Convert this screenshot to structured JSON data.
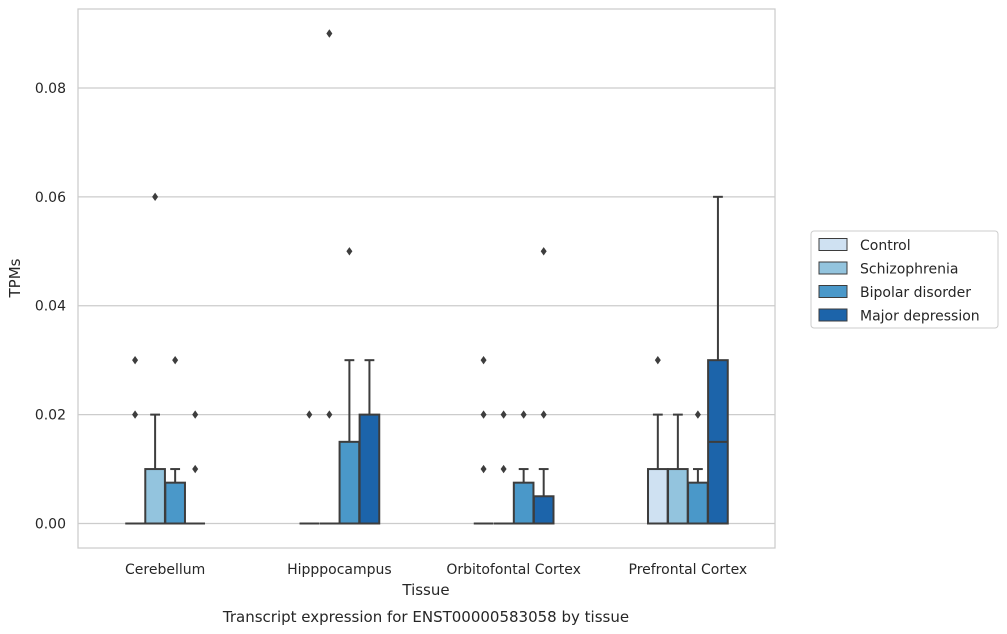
{
  "caption": "Transcript expression for ENST00000583058 by tissue",
  "chart_data": {
    "type": "box",
    "xlabel": "Tissue",
    "ylabel": "TPMs",
    "ylim": [
      -0.0045,
      0.0945
    ],
    "yticks": [
      0.0,
      0.02,
      0.04,
      0.06,
      0.08
    ],
    "ytick_labels": [
      "0.00",
      "0.02",
      "0.04",
      "0.06",
      "0.08"
    ],
    "grid": "horizontal",
    "legend_position": "right",
    "categories": [
      "Cerebellum",
      "Hipppocampus",
      "Orbitofontal Cortex",
      "Prefrontal Cortex"
    ],
    "series": [
      {
        "name": "Control",
        "color": "#cfe1f2",
        "boxes": [
          {
            "q1": 0,
            "median": 0,
            "q3": 0,
            "whislo": 0,
            "whishi": 0,
            "fliers": [
              0.02,
              0.03
            ]
          },
          {
            "q1": 0,
            "median": 0,
            "q3": 0,
            "whislo": 0,
            "whishi": 0,
            "fliers": [
              0.02
            ]
          },
          {
            "q1": 0,
            "median": 0,
            "q3": 0,
            "whislo": 0,
            "whishi": 0,
            "fliers": [
              0.01,
              0.02,
              0.03
            ]
          },
          {
            "q1": 0,
            "median": 0,
            "q3": 0.01,
            "whislo": 0,
            "whishi": 0.02,
            "fliers": [
              0.03
            ]
          }
        ]
      },
      {
        "name": "Schizophrenia",
        "color": "#93c4de",
        "boxes": [
          {
            "q1": 0,
            "median": 0,
            "q3": 0.01,
            "whislo": 0,
            "whishi": 0.02,
            "fliers": [
              0.06
            ]
          },
          {
            "q1": 0,
            "median": 0,
            "q3": 0,
            "whislo": 0,
            "whishi": 0,
            "fliers": [
              0.02,
              0.09
            ]
          },
          {
            "q1": 0,
            "median": 0,
            "q3": 0,
            "whislo": 0,
            "whishi": 0,
            "fliers": [
              0.01,
              0.02
            ]
          },
          {
            "q1": 0,
            "median": 0,
            "q3": 0.01,
            "whislo": 0,
            "whishi": 0.02,
            "fliers": []
          }
        ]
      },
      {
        "name": "Bipolar disorder",
        "color": "#4a98c9",
        "boxes": [
          {
            "q1": 0,
            "median": 0,
            "q3": 0.0075,
            "whislo": 0,
            "whishi": 0.01,
            "fliers": [
              0.03
            ]
          },
          {
            "q1": 0,
            "median": 0,
            "q3": 0.015,
            "whislo": 0,
            "whishi": 0.03,
            "fliers": [
              0.05
            ]
          },
          {
            "q1": 0,
            "median": 0,
            "q3": 0.0075,
            "whislo": 0,
            "whishi": 0.01,
            "fliers": [
              0.02
            ]
          },
          {
            "q1": 0,
            "median": 0,
            "q3": 0.0075,
            "whislo": 0,
            "whishi": 0.01,
            "fliers": [
              0.02
            ]
          }
        ]
      },
      {
        "name": "Major depression",
        "color": "#1c64aa",
        "boxes": [
          {
            "q1": 0,
            "median": 0,
            "q3": 0,
            "whislo": 0,
            "whishi": 0,
            "fliers": [
              0.01,
              0.02
            ]
          },
          {
            "q1": 0,
            "median": 0,
            "q3": 0.02,
            "whislo": 0,
            "whishi": 0.03,
            "fliers": []
          },
          {
            "q1": 0,
            "median": 0,
            "q3": 0.005,
            "whislo": 0,
            "whishi": 0.01,
            "fliers": [
              0.02,
              0.05
            ]
          },
          {
            "q1": 0,
            "median": 0.015,
            "q3": 0.03,
            "whislo": 0,
            "whishi": 0.06,
            "fliers": []
          }
        ]
      }
    ]
  }
}
